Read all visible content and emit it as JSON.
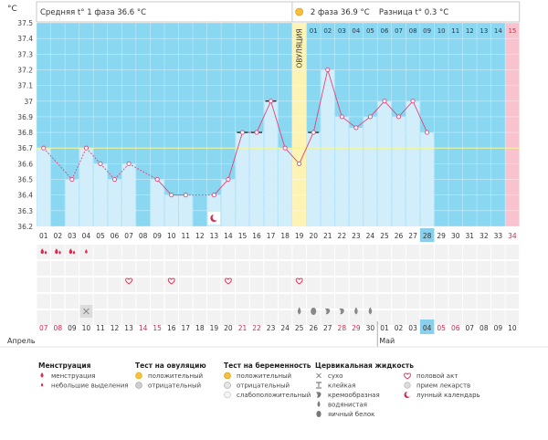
{
  "header": {
    "phase1_label": "Средняя t° 1 фаза 36.6 °C",
    "phase2_label": "2 фаза 36.9 °C",
    "diff_label": "Разница t° 0.3 °C",
    "y_unit": "°C"
  },
  "ovulation_label": "ОВУЛЯЦИЯ",
  "colors": {
    "phase1_bg": "#8ad7f2",
    "phase2_bg": "#8ad7f2",
    "ovulation_bg": "#fcf3b5",
    "late_bg": "#f8c3cf",
    "bar": "#d3eefb",
    "line": "#e0447a",
    "coverline": "#f7f58a",
    "cycle_day_highlight": "#8ad0ec"
  },
  "chart_data": {
    "type": "line",
    "title": "",
    "xlabel": "",
    "ylabel": "°C",
    "ylim": [
      36.2,
      37.5
    ],
    "y_ticks": [
      "36.2",
      "36.3",
      "36.4",
      "36.5",
      "36.6",
      "36.7",
      "36.8",
      "36.9",
      "37",
      "37.1",
      "37.2",
      "37.3",
      "37.4",
      "37.5"
    ],
    "coverline": 36.7,
    "ovulation_day": 19,
    "top_phase_days": [
      "01",
      "02",
      "03",
      "04",
      "05",
      "06",
      "07",
      "08",
      "09",
      "10",
      "11",
      "12",
      "13",
      "14",
      "15"
    ],
    "x_days": [
      "01",
      "02",
      "03",
      "04",
      "05",
      "06",
      "07",
      "08",
      "09",
      "10",
      "11",
      "12",
      "13",
      "14",
      "15",
      "16",
      "17",
      "18",
      "19",
      "20",
      "21",
      "22",
      "23",
      "24",
      "25",
      "26",
      "27",
      "28",
      "29",
      "30",
      "31",
      "32",
      "33",
      "34"
    ],
    "highlight_day": "28",
    "temperatures": [
      36.7,
      null,
      36.5,
      36.7,
      36.6,
      36.5,
      36.6,
      null,
      36.5,
      36.4,
      36.4,
      null,
      36.4,
      36.5,
      36.8,
      36.8,
      37.0,
      36.7,
      36.6,
      36.8,
      37.2,
      36.9,
      36.83,
      36.9,
      37.0,
      36.9,
      37.0,
      36.8,
      null,
      null,
      null,
      null,
      null,
      null
    ],
    "marked_days": [
      15,
      16,
      17,
      20
    ],
    "calendar_dates": [
      "07",
      "08",
      "09",
      "10",
      "11",
      "12",
      "13",
      "14",
      "15",
      "16",
      "17",
      "18",
      "19",
      "20",
      "21",
      "22",
      "23",
      "24",
      "25",
      "26",
      "27",
      "28",
      "29",
      "30",
      "01",
      "02",
      "03",
      "04",
      "05",
      "06",
      "07",
      "08",
      "09",
      "10"
    ],
    "red_date_indices": [
      0,
      1,
      7,
      8,
      14,
      15,
      21,
      22,
      28,
      29
    ],
    "highlight_date_index": 27,
    "months": [
      {
        "label": "Апрель",
        "index": 0
      },
      {
        "label": "Май",
        "index": 24
      }
    ],
    "menstruation": [
      {
        "day": 1,
        "type": "menstruation"
      },
      {
        "day": 2,
        "type": "menstruation"
      },
      {
        "day": 3,
        "type": "menstruation"
      },
      {
        "day": 4,
        "type": "spotting"
      }
    ],
    "intercourse_days": [
      7,
      10,
      14,
      19
    ],
    "pill_days": [
      4
    ],
    "cervical_days": [
      {
        "day": 19,
        "type": "watery"
      },
      {
        "day": 20,
        "type": "egg-white"
      },
      {
        "day": 21,
        "type": "creamy"
      },
      {
        "day": 22,
        "type": "creamy"
      },
      {
        "day": 23,
        "type": "watery"
      },
      {
        "day": 24,
        "type": "watery"
      }
    ],
    "lunar_day": 13
  },
  "legend": {
    "groups": [
      {
        "title": "Менструация",
        "items": [
          {
            "icon": "drop-large-icon",
            "label": "менструация"
          },
          {
            "icon": "drop-small-icon",
            "label": "небольшие выделения"
          }
        ]
      },
      {
        "title": "Тест на овуляцию",
        "items": [
          {
            "icon": "sun-positive-icon",
            "label": "положительный"
          },
          {
            "icon": "sun-negative-icon",
            "label": "отрицательный"
          }
        ]
      },
      {
        "title": "Тест на беременность",
        "items": [
          {
            "icon": "smile-positive-icon",
            "label": "положительный"
          },
          {
            "icon": "smile-negative-icon",
            "label": "отрицательный"
          },
          {
            "icon": "smile-weak-icon",
            "label": "слабоположительный"
          }
        ]
      },
      {
        "title": "Цервикальная жидкость",
        "items": [
          {
            "icon": "dry-icon",
            "label": "сухо"
          },
          {
            "icon": "sticky-icon",
            "label": "клейкая"
          },
          {
            "icon": "creamy-icon",
            "label": "кремообразная"
          },
          {
            "icon": "watery-icon",
            "label": "водянистая"
          },
          {
            "icon": "egg-white-icon",
            "label": "яичный белок"
          }
        ]
      },
      {
        "title": "",
        "items": [
          {
            "icon": "heart-icon",
            "label": "половой акт"
          },
          {
            "icon": "pill-icon",
            "label": "прием лекарств"
          },
          {
            "icon": "moon-icon",
            "label": "лунный календарь"
          }
        ]
      }
    ]
  }
}
